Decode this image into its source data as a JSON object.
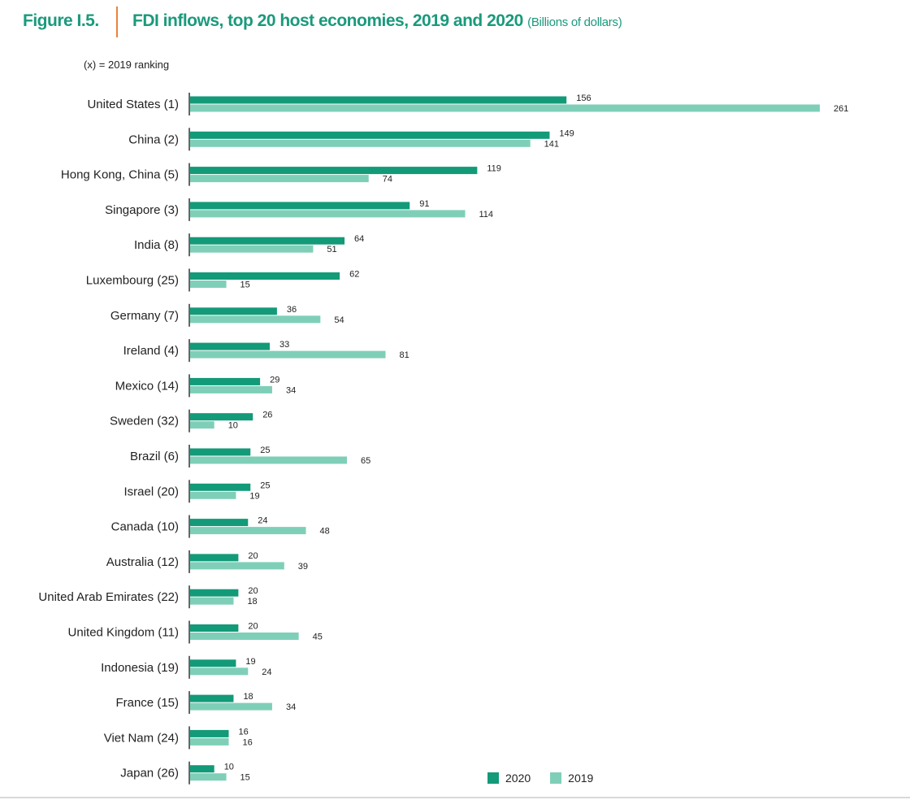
{
  "figure": {
    "label": "Figure I.5.",
    "title": "FDI inflows, top 20 host economies, 2019 and 2020",
    "unit": "(Billions of dollars)",
    "rank_note": "(x) = 2019  ranking"
  },
  "colors": {
    "title": "#1a9a7c",
    "divider": "#e8843a",
    "series_2020": "#139a78",
    "series_2019": "#7fcfb8"
  },
  "chart_data": {
    "type": "bar",
    "orientation": "horizontal",
    "title": "FDI inflows, top 20 host economies, 2019 and 2020",
    "xlabel": "Billions of dollars",
    "ylabel": "",
    "xlim": [
      0,
      261
    ],
    "grid": false,
    "legend_position": "bottom-right",
    "categories": [
      "United States (1)",
      "China (2)",
      "Hong Kong, China (5)",
      "Singapore (3)",
      "India (8)",
      "Luxembourg (25)",
      "Germany (7)",
      "Ireland (4)",
      "Mexico (14)",
      "Sweden (32)",
      "Brazil (6)",
      "Israel (20)",
      "Canada (10)",
      "Australia (12)",
      "United Arab Emirates (22)",
      "United Kingdom (11)",
      "Indonesia (19)",
      "France (15)",
      "Viet Nam (24)",
      "Japan (26)"
    ],
    "series": [
      {
        "name": "2020",
        "values": [
          156,
          149,
          119,
          91,
          64,
          62,
          36,
          33,
          29,
          26,
          25,
          25,
          24,
          20,
          20,
          20,
          19,
          18,
          16,
          10
        ]
      },
      {
        "name": "2019",
        "values": [
          261,
          141,
          74,
          114,
          51,
          15,
          54,
          81,
          34,
          10,
          65,
          19,
          48,
          39,
          18,
          45,
          24,
          34,
          16,
          15
        ]
      }
    ]
  }
}
